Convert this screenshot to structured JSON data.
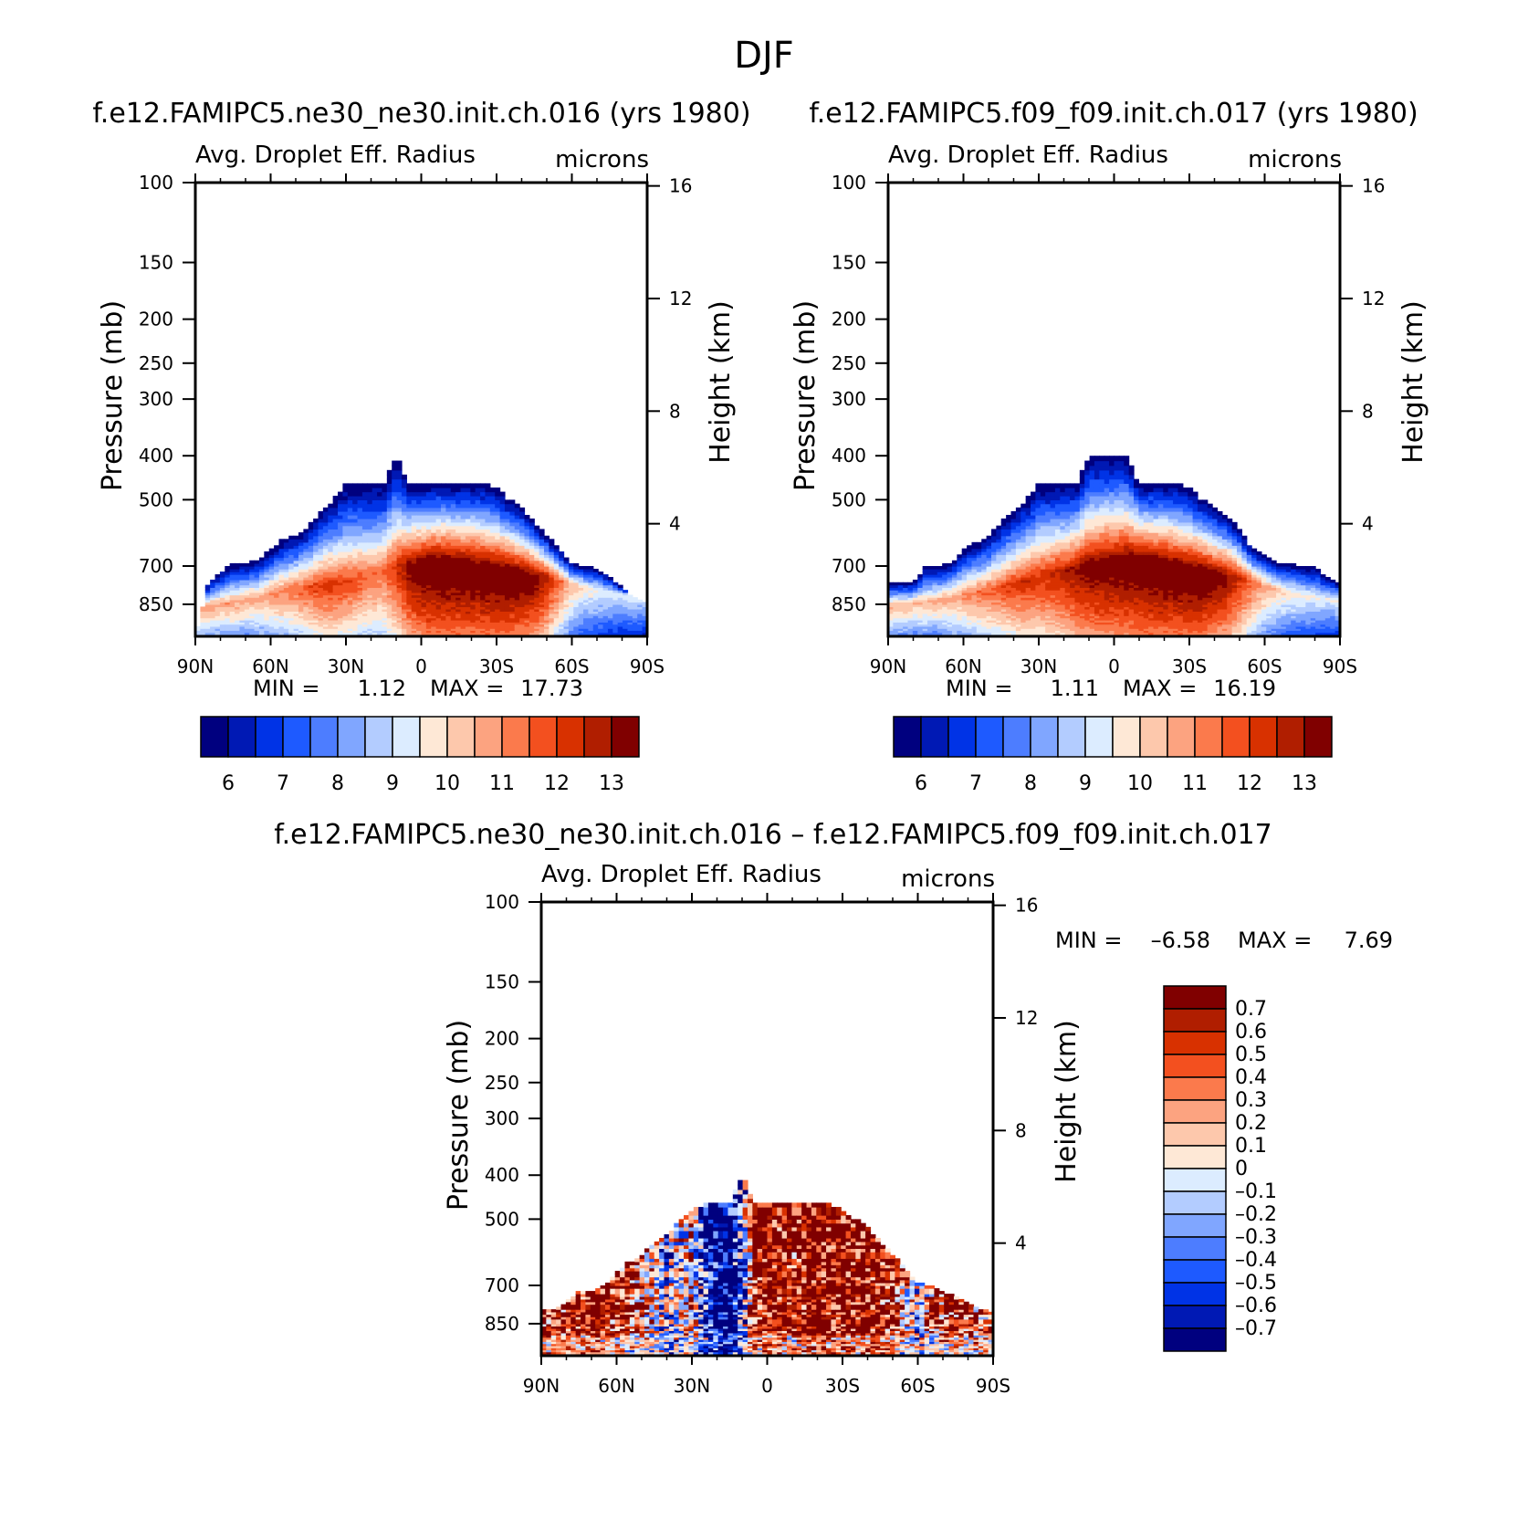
{
  "figure": {
    "title": "DJF"
  },
  "colors": {
    "abs_scale": [
      "#00007f",
      "#0019b4",
      "#0033e6",
      "#1e5aff",
      "#4d7dff",
      "#80a6ff",
      "#b3ccff",
      "#dcecff",
      "#fee8d6",
      "#fdc8ac",
      "#fca380",
      "#fb7a4c",
      "#f3501f",
      "#d83100",
      "#b01e00",
      "#800000"
    ],
    "diff_scale": [
      "#00007f",
      "#0019b4",
      "#0033e6",
      "#1e5aff",
      "#4d7dff",
      "#80a6ff",
      "#b3ccff",
      "#dcecff",
      "#fee8d6",
      "#fdc8ac",
      "#fca380",
      "#fb7a4c",
      "#f3501f",
      "#d83100",
      "#b01e00",
      "#800000"
    ]
  },
  "chart_data": [
    {
      "type": "heatmap",
      "title": "f.e12.FAMIPC5.ne30_ne30.init.ch.016 (yrs 1980)",
      "subtitle": "Avg. Droplet Eff. Radius",
      "units": "microns",
      "xlabel": "",
      "ylabel": "Pressure (mb)",
      "ylabel_right": "Height (km)",
      "x_ticks": [
        "90N",
        "60N",
        "30N",
        "0",
        "30S",
        "60S",
        "90S"
      ],
      "y_ticks": [
        100,
        150,
        200,
        250,
        300,
        400,
        500,
        700,
        850
      ],
      "y2_ticks": [
        16,
        12,
        8,
        4
      ],
      "ylim": [
        1000,
        100
      ],
      "y_scale": "log",
      "min_label": "MIN =",
      "min_value": "1.12",
      "max_label": "MAX =",
      "max_value": "17.73",
      "colorbar": {
        "orientation": "horizontal",
        "labels": [
          "6",
          "7",
          "8",
          "9",
          "10",
          "11",
          "12",
          "13"
        ]
      },
      "field": {
        "top_pressure": [
          [
            -90,
            1000
          ],
          [
            -85,
            760
          ],
          [
            -80,
            720
          ],
          [
            -75,
            690
          ],
          [
            -70,
            690
          ],
          [
            -65,
            680
          ],
          [
            -60,
            640
          ],
          [
            -55,
            610
          ],
          [
            -50,
            600
          ],
          [
            -45,
            570
          ],
          [
            -40,
            530
          ],
          [
            -35,
            500
          ],
          [
            -30,
            460
          ],
          [
            -25,
            460
          ],
          [
            -20,
            460
          ],
          [
            -15,
            460
          ],
          [
            -10,
            400
          ],
          [
            -5,
            460
          ],
          [
            0,
            460
          ],
          [
            5,
            460
          ],
          [
            10,
            460
          ],
          [
            15,
            460
          ],
          [
            20,
            460
          ],
          [
            25,
            460
          ],
          [
            30,
            470
          ],
          [
            35,
            500
          ],
          [
            40,
            520
          ],
          [
            45,
            560
          ],
          [
            50,
            600
          ],
          [
            55,
            640
          ],
          [
            60,
            690
          ],
          [
            65,
            700
          ],
          [
            70,
            710
          ],
          [
            75,
            740
          ],
          [
            80,
            780
          ],
          [
            85,
            820
          ],
          [
            90,
            840
          ]
        ],
        "peak_value": [
          [
            -90,
            11
          ],
          [
            -85,
            11
          ],
          [
            -80,
            10.8
          ],
          [
            -75,
            10.8
          ],
          [
            -70,
            10.7
          ],
          [
            -65,
            10.8
          ],
          [
            -60,
            11
          ],
          [
            -55,
            11.2
          ],
          [
            -50,
            11.5
          ],
          [
            -45,
            11.8
          ],
          [
            -40,
            12.2
          ],
          [
            -35,
            12.2
          ],
          [
            -30,
            12
          ],
          [
            -25,
            11.8
          ],
          [
            -20,
            11.5
          ],
          [
            -15,
            11.5
          ],
          [
            -10,
            12.3
          ],
          [
            -5,
            13.3
          ],
          [
            0,
            13.8
          ],
          [
            5,
            14
          ],
          [
            10,
            14
          ],
          [
            15,
            14
          ],
          [
            20,
            14
          ],
          [
            25,
            14
          ],
          [
            30,
            14
          ],
          [
            35,
            14
          ],
          [
            40,
            13.8
          ],
          [
            45,
            13.5
          ],
          [
            50,
            12.8
          ],
          [
            55,
            11.5
          ],
          [
            60,
            10.4
          ],
          [
            65,
            9.8
          ],
          [
            70,
            9.6
          ],
          [
            75,
            9.4
          ],
          [
            80,
            9.3
          ],
          [
            85,
            9.3
          ],
          [
            90,
            9.2
          ]
        ],
        "peak_pressure": [
          [
            -90,
            870
          ],
          [
            -70,
            830
          ],
          [
            -50,
            780
          ],
          [
            -30,
            760
          ],
          [
            -10,
            700
          ],
          [
            10,
            690
          ],
          [
            30,
            720
          ],
          [
            50,
            740
          ],
          [
            70,
            790
          ],
          [
            90,
            820
          ]
        ]
      }
    },
    {
      "type": "heatmap",
      "title": "f.e12.FAMIPC5.f09_f09.init.ch.017 (yrs 1980)",
      "subtitle": "Avg. Droplet Eff. Radius",
      "units": "microns",
      "xlabel": "",
      "ylabel": "Pressure (mb)",
      "ylabel_right": "Height (km)",
      "x_ticks": [
        "90N",
        "60N",
        "30N",
        "0",
        "30S",
        "60S",
        "90S"
      ],
      "y_ticks": [
        100,
        150,
        200,
        250,
        300,
        400,
        500,
        700,
        850
      ],
      "y2_ticks": [
        16,
        12,
        8,
        4
      ],
      "ylim": [
        1000,
        100
      ],
      "y_scale": "log",
      "min_label": "MIN =",
      "min_value": "1.11",
      "max_label": "MAX =",
      "max_value": "16.19",
      "colorbar": {
        "orientation": "horizontal",
        "labels": [
          "6",
          "7",
          "8",
          "9",
          "10",
          "11",
          "12",
          "13"
        ]
      },
      "field": {
        "top_pressure": [
          [
            -90,
            760
          ],
          [
            -85,
            760
          ],
          [
            -80,
            760
          ],
          [
            -75,
            700
          ],
          [
            -70,
            700
          ],
          [
            -65,
            690
          ],
          [
            -60,
            640
          ],
          [
            -55,
            620
          ],
          [
            -50,
            600
          ],
          [
            -45,
            560
          ],
          [
            -40,
            530
          ],
          [
            -35,
            500
          ],
          [
            -30,
            460
          ],
          [
            -25,
            460
          ],
          [
            -20,
            460
          ],
          [
            -15,
            460
          ],
          [
            -10,
            400
          ],
          [
            -5,
            400
          ],
          [
            0,
            400
          ],
          [
            5,
            400
          ],
          [
            10,
            460
          ],
          [
            15,
            460
          ],
          [
            20,
            460
          ],
          [
            25,
            460
          ],
          [
            30,
            470
          ],
          [
            35,
            500
          ],
          [
            40,
            520
          ],
          [
            45,
            540
          ],
          [
            50,
            580
          ],
          [
            55,
            640
          ],
          [
            60,
            660
          ],
          [
            65,
            690
          ],
          [
            70,
            690
          ],
          [
            75,
            700
          ],
          [
            80,
            700
          ],
          [
            85,
            740
          ],
          [
            90,
            760
          ]
        ],
        "peak_value": [
          [
            -90,
            10.6
          ],
          [
            -85,
            10.6
          ],
          [
            -80,
            10.5
          ],
          [
            -75,
            10.5
          ],
          [
            -70,
            10.6
          ],
          [
            -65,
            10.8
          ],
          [
            -60,
            11
          ],
          [
            -55,
            11.3
          ],
          [
            -50,
            11.6
          ],
          [
            -45,
            11.9
          ],
          [
            -40,
            12.2
          ],
          [
            -35,
            12.4
          ],
          [
            -30,
            12.3
          ],
          [
            -25,
            12.5
          ],
          [
            -20,
            12.8
          ],
          [
            -15,
            13.2
          ],
          [
            -10,
            13.5
          ],
          [
            -5,
            13.6
          ],
          [
            0,
            13.7
          ],
          [
            5,
            13.8
          ],
          [
            10,
            13.9
          ],
          [
            15,
            14
          ],
          [
            20,
            14
          ],
          [
            25,
            14
          ],
          [
            30,
            14
          ],
          [
            35,
            14
          ],
          [
            40,
            13.6
          ],
          [
            45,
            13.2
          ],
          [
            50,
            12.5
          ],
          [
            55,
            11.5
          ],
          [
            60,
            10.8
          ],
          [
            65,
            10.2
          ],
          [
            70,
            9.9
          ],
          [
            75,
            9.7
          ],
          [
            80,
            9.6
          ],
          [
            85,
            9.5
          ],
          [
            90,
            9.5
          ]
        ],
        "peak_pressure": [
          [
            -90,
            860
          ],
          [
            -70,
            830
          ],
          [
            -50,
            790
          ],
          [
            -30,
            740
          ],
          [
            -10,
            700
          ],
          [
            10,
            680
          ],
          [
            30,
            720
          ],
          [
            50,
            740
          ],
          [
            70,
            800
          ],
          [
            90,
            830
          ]
        ]
      }
    },
    {
      "type": "heatmap",
      "title": "f.e12.FAMIPC5.ne30_ne30.init.ch.016 – f.e12.FAMIPC5.f09_f09.init.ch.017",
      "subtitle": "Avg. Droplet Eff. Radius",
      "units": "microns",
      "xlabel": "",
      "ylabel": "Pressure (mb)",
      "ylabel_right": "Height (km)",
      "x_ticks": [
        "90N",
        "60N",
        "30N",
        "0",
        "30S",
        "60S",
        "90S"
      ],
      "y_ticks": [
        100,
        150,
        200,
        250,
        300,
        400,
        500,
        700,
        850
      ],
      "y2_ticks": [
        16,
        12,
        8,
        4
      ],
      "ylim": [
        1000,
        100
      ],
      "y_scale": "log",
      "min_label": "MIN =",
      "min_value": "–6.58",
      "max_label": "MAX =",
      "max_value": "7.69",
      "colorbar": {
        "orientation": "vertical",
        "labels": [
          "0.7",
          "0.6",
          "0.5",
          "0.4",
          "0.3",
          "0.2",
          "0.1",
          "0",
          "–0.1",
          "–0.2",
          "–0.3",
          "–0.4",
          "–0.5",
          "–0.6",
          "–0.7"
        ]
      },
      "field": {
        "top_pressure": [
          [
            -90,
            790
          ],
          [
            -85,
            790
          ],
          [
            -80,
            760
          ],
          [
            -75,
            720
          ],
          [
            -70,
            720
          ],
          [
            -65,
            700
          ],
          [
            -60,
            650
          ],
          [
            -55,
            620
          ],
          [
            -50,
            600
          ],
          [
            -45,
            560
          ],
          [
            -40,
            540
          ],
          [
            -35,
            500
          ],
          [
            -30,
            480
          ],
          [
            -25,
            460
          ],
          [
            -20,
            460
          ],
          [
            -15,
            460
          ],
          [
            -10,
            400
          ],
          [
            -5,
            460
          ],
          [
            0,
            460
          ],
          [
            5,
            460
          ],
          [
            10,
            460
          ],
          [
            15,
            460
          ],
          [
            20,
            460
          ],
          [
            25,
            460
          ],
          [
            30,
            480
          ],
          [
            35,
            500
          ],
          [
            40,
            520
          ],
          [
            45,
            560
          ],
          [
            50,
            600
          ],
          [
            55,
            640
          ],
          [
            60,
            690
          ],
          [
            65,
            700
          ],
          [
            70,
            720
          ],
          [
            75,
            740
          ],
          [
            80,
            760
          ],
          [
            85,
            790
          ],
          [
            90,
            800
          ]
        ],
        "bands": [
          [
            -90,
            0.5
          ],
          [
            -80,
            0.6
          ],
          [
            -70,
            0.8
          ],
          [
            -60,
            0.6
          ],
          [
            -50,
            0.4
          ],
          [
            -40,
            -0.2
          ],
          [
            -30,
            0.3
          ],
          [
            -25,
            -0.6
          ],
          [
            -20,
            -0.8
          ],
          [
            -15,
            -0.9
          ],
          [
            -10,
            -0.4
          ],
          [
            -5,
            0.7
          ],
          [
            0,
            0.8
          ],
          [
            5,
            0.7
          ],
          [
            10,
            0.6
          ],
          [
            15,
            0.8
          ],
          [
            20,
            0.9
          ],
          [
            25,
            0.8
          ],
          [
            30,
            0.8
          ],
          [
            35,
            0.8
          ],
          [
            40,
            0.8
          ],
          [
            45,
            0.7
          ],
          [
            50,
            0.6
          ],
          [
            55,
            0.2
          ],
          [
            60,
            -0.1
          ],
          [
            65,
            0.4
          ],
          [
            70,
            0.5
          ],
          [
            75,
            0.6
          ],
          [
            80,
            0.5
          ],
          [
            85,
            0.4
          ],
          [
            90,
            0.6
          ]
        ]
      }
    }
  ]
}
